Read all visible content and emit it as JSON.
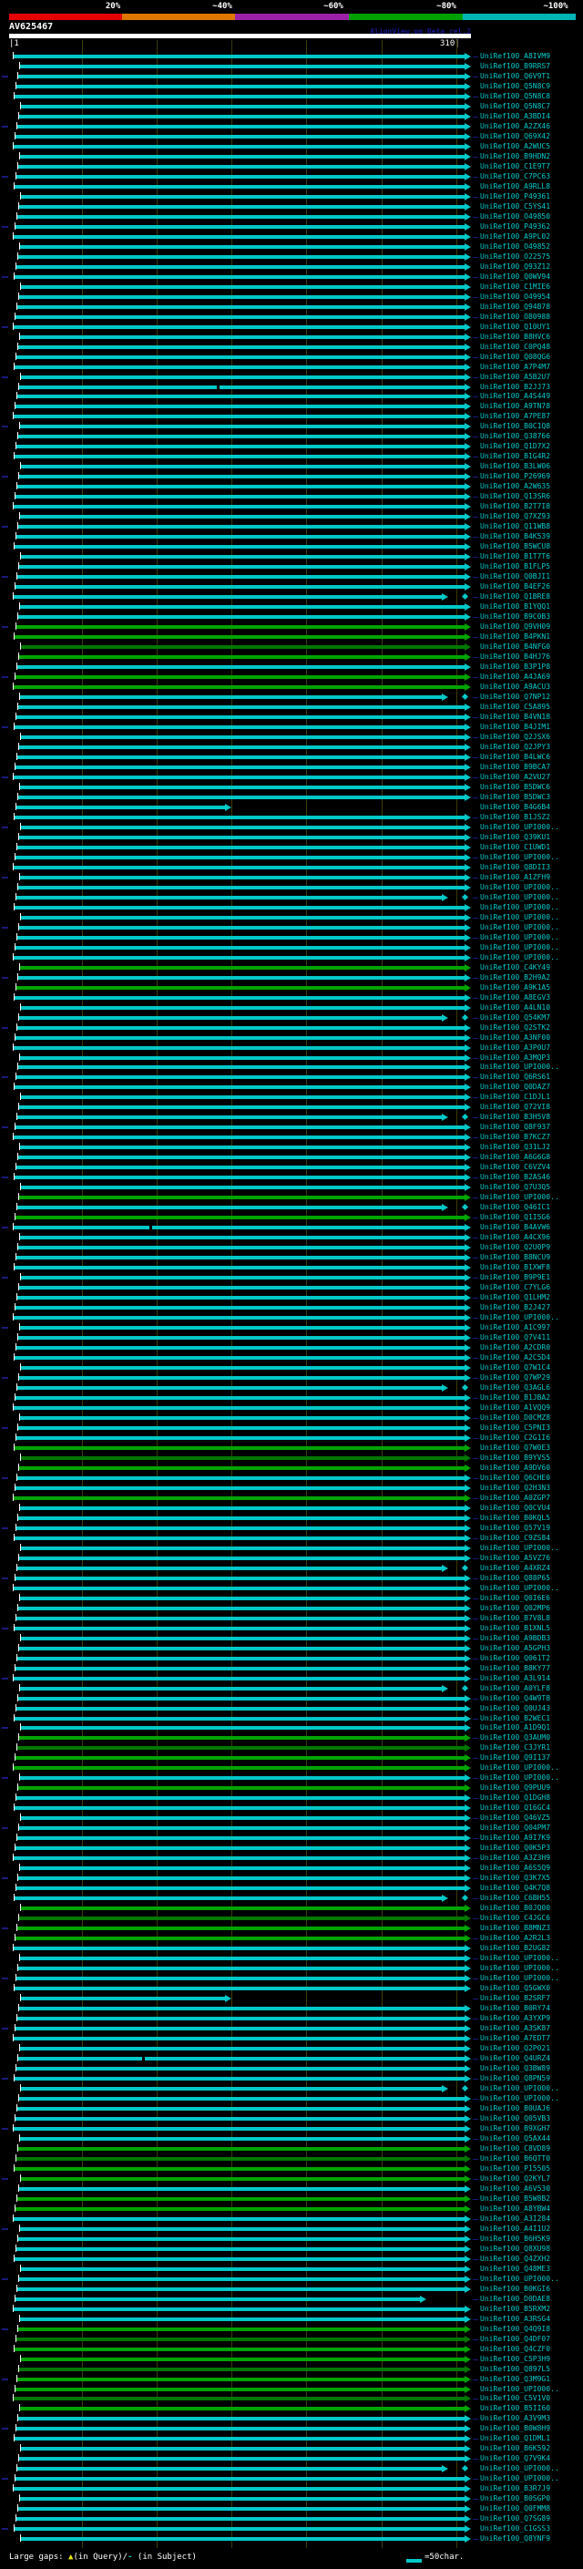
{
  "header": {
    "scale": {
      "labels": [
        "20%",
        "~40%",
        "~60%",
        "~80%",
        "~100%"
      ],
      "colors": [
        "#e60000",
        "#dd7700",
        "#9b22a8",
        "#00a000",
        "#00b4b4"
      ],
      "label_centers": [
        124,
        244,
        366,
        490,
        610
      ],
      "segment_bounds": [
        10,
        134,
        258,
        383,
        508,
        632
      ]
    },
    "query_name": "AV625467",
    "watermark": "AlignView.pm Beta rel.2",
    "ruler": {
      "start": "1",
      "end": "310",
      "tick_interval": 50
    }
  },
  "footer": {
    "gaps_label": "Large gaps: ",
    "gap_query_symbol": "▲",
    "gap_query_text": "(in Query)/",
    "gap_subject_symbol": "-",
    "gap_subject_text": " (in Subject)",
    "bar_scale_text": "=50char.",
    "bar_scale_color": "#00c8c8"
  },
  "chart_data": {
    "type": "bar",
    "orientation": "horizontal",
    "title": "AV625467",
    "xlim": [
      1,
      310
    ],
    "grid": "vertical ticks every 50 chars",
    "identity_scale": [
      "20%",
      "~40%",
      "~60%",
      "~80%",
      "~100%"
    ],
    "bar_colors": {
      "c": "#00c8c8",
      "g": "#00a400",
      "d": "#007800"
    },
    "rows": [
      {
        "l": "UniRef100_A8IVM9"
      },
      {
        "l": "UniRef100_B9RRS7"
      },
      {
        "l": "UniRef100_Q6V9T1"
      },
      {
        "l": "UniRef100_Q5N8C9"
      },
      {
        "l": "UniRef100_Q5N8C8"
      },
      {
        "l": "UniRef100_Q5N8C7"
      },
      {
        "l": "UniRef100_A3BDI4"
      },
      {
        "l": "UniRef100_A2ZX46"
      },
      {
        "l": "UniRef100_Q69X42"
      },
      {
        "l": "UniRef100_A2WUC5"
      },
      {
        "l": "UniRef100_B9HDN2"
      },
      {
        "l": "UniRef100_C1E9T7"
      },
      {
        "l": "UniRef100_C7PC63"
      },
      {
        "l": "UniRef100_A9RLL8"
      },
      {
        "l": "UniRef100_P49361"
      },
      {
        "l": "UniRef100_C5YS41"
      },
      {
        "l": "UniRef100_O49850"
      },
      {
        "l": "UniRef100_P49362"
      },
      {
        "l": "UniRef100_A9PL02"
      },
      {
        "l": "UniRef100_O49852"
      },
      {
        "l": "UniRef100_O22575"
      },
      {
        "l": "UniRef100_Q93Z12"
      },
      {
        "l": "UniRef100_Q0WV94"
      },
      {
        "l": "UniRef100_C1MIE6"
      },
      {
        "l": "UniRef100_O49954"
      },
      {
        "l": "UniRef100_Q94B78"
      },
      {
        "l": "UniRef100_O80988"
      },
      {
        "l": "UniRef100_Q10UY1"
      },
      {
        "l": "UniRef100_B8HVC6"
      },
      {
        "l": "UniRef100_C0PQ48"
      },
      {
        "l": "UniRef100_Q08QG6"
      },
      {
        "l": "UniRef100_A7P4M7"
      },
      {
        "l": "UniRef100_A5B2U7"
      },
      {
        "l": "UniRef100_B2JJ73",
        "gp": 140
      },
      {
        "l": "UniRef100_A4S449"
      },
      {
        "l": "UniRef100_A9TN78"
      },
      {
        "l": "UniRef100_A7PE87"
      },
      {
        "l": "UniRef100_B0C1Q8"
      },
      {
        "l": "UniRef100_Q38766"
      },
      {
        "l": "UniRef100_Q1D7X2"
      },
      {
        "l": "UniRef100_B1G4R2"
      },
      {
        "l": "UniRef100_B3LW06"
      },
      {
        "l": "UniRef100_P26969"
      },
      {
        "l": "UniRef100_A2W635"
      },
      {
        "l": "UniRef100_Q13SR6"
      },
      {
        "l": "UniRef100_B2T7I8"
      },
      {
        "l": "UniRef100_Q7XZ93"
      },
      {
        "l": "UniRef100_Q11WB8"
      },
      {
        "l": "UniRef100_B4K539"
      },
      {
        "l": "UniRef100_B5WCU8"
      },
      {
        "l": "UniRef100_B1T7T6"
      },
      {
        "l": "UniRef100_B1FLP5"
      },
      {
        "l": "UniRef100_Q0BJI1"
      },
      {
        "l": "UniRef100_B4EF26"
      },
      {
        "l": "UniRef100_Q1BRE8",
        "e": 295,
        "dm": 1
      },
      {
        "l": "UniRef100_B1YQQ1"
      },
      {
        "l": "UniRef100_B9C0B3"
      },
      {
        "l": "UniRef100_Q9VH09",
        "c": "g"
      },
      {
        "l": "UniRef100_B4PKN1",
        "c": "g"
      },
      {
        "l": "UniRef100_B4NFG0",
        "c": "d"
      },
      {
        "l": "UniRef100_B4HJ76",
        "c": "g"
      },
      {
        "l": "UniRef100_B3P1P8"
      },
      {
        "l": "UniRef100_A4JA69",
        "c": "g"
      },
      {
        "l": "UniRef100_A9ACU3",
        "c": "g"
      },
      {
        "l": "UniRef100_Q7NP12",
        "e": 295,
        "dm": 1
      },
      {
        "l": "UniRef100_C5A895"
      },
      {
        "l": "UniRef100_B4VN18"
      },
      {
        "l": "UniRef100_B4JIM1"
      },
      {
        "l": "UniRef100_Q2JSX6"
      },
      {
        "l": "UniRef100_Q2JPY3"
      },
      {
        "l": "UniRef100_B4LWC6"
      },
      {
        "l": "UniRef100_B9BCA7"
      },
      {
        "l": "UniRef100_A2VU27"
      },
      {
        "l": "UniRef100_B5DWC6"
      },
      {
        "l": "UniRef100_B5DWC3"
      },
      {
        "l": "UniRef100_B4G6B4",
        "e": 150
      },
      {
        "l": "UniRef100_B1JSZ2"
      },
      {
        "l": "UniRef100_UPI000.."
      },
      {
        "l": "UniRef100_Q39KU1"
      },
      {
        "l": "UniRef100_C1UWD1"
      },
      {
        "l": "UniRef100_UPI000.."
      },
      {
        "l": "UniRef100_Q8DII3"
      },
      {
        "l": "UniRef100_A1ZFH9"
      },
      {
        "l": "UniRef100_UPI000.."
      },
      {
        "l": "UniRef100_UPI000..",
        "e": 295,
        "dm": 1
      },
      {
        "l": "UniRef100_UPI000.."
      },
      {
        "l": "UniRef100_UPI000.."
      },
      {
        "l": "UniRef100_UPI000.."
      },
      {
        "l": "UniRef100_UPI000.."
      },
      {
        "l": "UniRef100_UPI000.."
      },
      {
        "l": "UniRef100_UPI000.."
      },
      {
        "l": "UniRef100_C4KY49",
        "c": "g"
      },
      {
        "l": "UniRef100_B2H9A2"
      },
      {
        "l": "UniRef100_A9K1A5",
        "c": "g"
      },
      {
        "l": "UniRef100_A8EGV3"
      },
      {
        "l": "UniRef100_A4LN10"
      },
      {
        "l": "UniRef100_Q54KM7",
        "e": 295,
        "dm": 1
      },
      {
        "l": "UniRef100_Q2STK2"
      },
      {
        "l": "UniRef100_A3NF00"
      },
      {
        "l": "UniRef100_A3P0U7"
      },
      {
        "l": "UniRef100_A3MQP3"
      },
      {
        "l": "UniRef100_UPI000.."
      },
      {
        "l": "UniRef100_Q6RS61"
      },
      {
        "l": "UniRef100_Q0DAZ7"
      },
      {
        "l": "UniRef100_C1DJL1"
      },
      {
        "l": "UniRef100_Q72VI8"
      },
      {
        "l": "UniRef100_B3H5V8",
        "e": 295,
        "dm": 1
      },
      {
        "l": "UniRef100_Q8F937"
      },
      {
        "l": "UniRef100_B7KCZ7"
      },
      {
        "l": "UniRef100_Q31LJ2"
      },
      {
        "l": "UniRef100_A6G6G8"
      },
      {
        "l": "UniRef100_C6VZV4"
      },
      {
        "l": "UniRef100_B2AS46"
      },
      {
        "l": "UniRef100_Q7U3Q5"
      },
      {
        "l": "UniRef100_UPI000..",
        "c": "g"
      },
      {
        "l": "UniRef100_Q46IC1",
        "e": 295,
        "dm": 1
      },
      {
        "l": "UniRef100_Q1I5G6",
        "c": "g"
      },
      {
        "l": "UniRef100_B4AVW6",
        "gp": 95
      },
      {
        "l": "UniRef100_A4CX96"
      },
      {
        "l": "UniRef100_Q2U0P9"
      },
      {
        "l": "UniRef100_B8NCU9"
      },
      {
        "l": "UniRef100_B1XWF8"
      },
      {
        "l": "UniRef100_B9P9E1"
      },
      {
        "l": "UniRef100_C7YLG6"
      },
      {
        "l": "UniRef100_Q1LHM2"
      },
      {
        "l": "UniRef100_B2J427"
      },
      {
        "l": "UniRef100_UPI000.."
      },
      {
        "l": "UniRef100_A1C997"
      },
      {
        "l": "UniRef100_Q7V411"
      },
      {
        "l": "UniRef100_A2CDR0"
      },
      {
        "l": "UniRef100_A2C5D4"
      },
      {
        "l": "UniRef100_Q7W1C4"
      },
      {
        "l": "UniRef100_Q7WP29"
      },
      {
        "l": "UniRef100_Q3AGL6",
        "e": 295,
        "dm": 1
      },
      {
        "l": "UniRef100_B1JBA2"
      },
      {
        "l": "UniRef100_A1VQQ9"
      },
      {
        "l": "UniRef100_D0CMZ8"
      },
      {
        "l": "UniRef100_C5PNI3"
      },
      {
        "l": "UniRef100_C2G1I6"
      },
      {
        "l": "UniRef100_Q7W0E3",
        "c": "g"
      },
      {
        "l": "UniRef100_B9YVS5",
        "c": "d"
      },
      {
        "l": "UniRef100_A9DV60",
        "c": "g"
      },
      {
        "l": "UniRef100_Q6CHE0"
      },
      {
        "l": "UniRef100_Q2H3N3"
      },
      {
        "l": "UniRef100_A0ZGP7",
        "c": "g"
      },
      {
        "l": "UniRef100_Q0CVU4"
      },
      {
        "l": "UniRef100_B0KQL5"
      },
      {
        "l": "UniRef100_Q57V19"
      },
      {
        "l": "UniRef100_C9ZS84"
      },
      {
        "l": "UniRef100_UPI000.."
      },
      {
        "l": "UniRef100_A5VZ76"
      },
      {
        "l": "UniRef100_A4XRZ4",
        "e": 295,
        "dm": 1
      },
      {
        "l": "UniRef100_Q88P65"
      },
      {
        "l": "UniRef100_UPI000.."
      },
      {
        "l": "UniRef100_Q0I6E6"
      },
      {
        "l": "UniRef100_Q02MP6"
      },
      {
        "l": "UniRef100_B7V8L8"
      },
      {
        "l": "UniRef100_B1XNL5"
      },
      {
        "l": "UniRef100_A9BDB3"
      },
      {
        "l": "UniRef100_A5GPH3"
      },
      {
        "l": "UniRef100_Q061T2"
      },
      {
        "l": "UniRef100_B8KY77"
      },
      {
        "l": "UniRef100_A3L914"
      },
      {
        "l": "UniRef100_A0YLF8",
        "e": 295,
        "dm": 1
      },
      {
        "l": "UniRef100_Q4W9T8"
      },
      {
        "l": "UniRef100_Q0UJ43"
      },
      {
        "l": "UniRef100_B2WEC1"
      },
      {
        "l": "UniRef100_A1D9Q1"
      },
      {
        "l": "UniRef100_Q3AUM0",
        "c": "g"
      },
      {
        "l": "UniRef100_C3JYR1",
        "c": "d"
      },
      {
        "l": "UniRef100_Q9I137",
        "c": "g"
      },
      {
        "l": "UniRef100_UPI000..",
        "c": "g"
      },
      {
        "l": "UniRef100_UPI000.."
      },
      {
        "l": "UniRef100_Q9PUU9",
        "c": "g"
      },
      {
        "l": "UniRef100_Q1DGH8"
      },
      {
        "l": "UniRef100_Q16GC4"
      },
      {
        "l": "UniRef100_Q46VZ5"
      },
      {
        "l": "UniRef100_Q04PM7"
      },
      {
        "l": "UniRef100_A9I7K9"
      },
      {
        "l": "UniRef100_Q0K5P3"
      },
      {
        "l": "UniRef100_A3Z3H9"
      },
      {
        "l": "UniRef100_A6S5Q9"
      },
      {
        "l": "UniRef100_Q3K7X5"
      },
      {
        "l": "UniRef100_Q4K7Q8"
      },
      {
        "l": "UniRef100_C6BH55",
        "e": 295,
        "dm": 1
      },
      {
        "l": "UniRef100_B0JQ00",
        "c": "g"
      },
      {
        "l": "UniRef100_C4JGC6",
        "c": "d"
      },
      {
        "l": "UniRef100_B8MNZ3",
        "c": "g"
      },
      {
        "l": "UniRef100_A2R2L3",
        "c": "g"
      },
      {
        "l": "UniRef100_B2UG82"
      },
      {
        "l": "UniRef100_UPI000.."
      },
      {
        "l": "UniRef100_UPI000.."
      },
      {
        "l": "UniRef100_UPI000.."
      },
      {
        "l": "UniRef100_Q5GWX0"
      },
      {
        "l": "UniRef100_B2SRF7",
        "e": 150
      },
      {
        "l": "UniRef100_B0RY74"
      },
      {
        "l": "UniRef100_A3YXP9"
      },
      {
        "l": "UniRef100_A3SK87"
      },
      {
        "l": "UniRef100_A7EDT7"
      },
      {
        "l": "UniRef100_Q2P021"
      },
      {
        "l": "UniRef100_Q4URZ4",
        "gp": 90
      },
      {
        "l": "UniRef100_Q3BW89"
      },
      {
        "l": "UniRef100_Q8PN59"
      },
      {
        "l": "UniRef100_UPI000..",
        "e": 295,
        "dm": 1
      },
      {
        "l": "UniRef100_UPI000.."
      },
      {
        "l": "UniRef100_B0UAJ6"
      },
      {
        "l": "UniRef100_Q05VB3"
      },
      {
        "l": "UniRef100_B9XGH7"
      },
      {
        "l": "UniRef100_Q5AX44"
      },
      {
        "l": "UniRef100_C8VD89",
        "c": "g"
      },
      {
        "l": "UniRef100_B6QTT0",
        "c": "d"
      },
      {
        "l": "UniRef100_P15505",
        "c": "g"
      },
      {
        "l": "UniRef100_Q2KYL7",
        "c": "g"
      },
      {
        "l": "UniRef100_A6V530"
      },
      {
        "l": "UniRef100_B5W8B2",
        "c": "g"
      },
      {
        "l": "UniRef100_A8YBW4",
        "c": "g"
      },
      {
        "l": "UniRef100_A3I284"
      },
      {
        "l": "UniRef100_A4I1U2"
      },
      {
        "l": "UniRef100_B6H5K9"
      },
      {
        "l": "UniRef100_Q8XU98"
      },
      {
        "l": "UniRef100_Q4ZXH2"
      },
      {
        "l": "UniRef100_Q48ME3"
      },
      {
        "l": "UniRef100_UPI000.."
      },
      {
        "l": "UniRef100_B0KGI6"
      },
      {
        "l": "UniRef100_D0DAE8",
        "e": 280
      },
      {
        "l": "UniRef100_B5RXM2"
      },
      {
        "l": "UniRef100_A3RSG4"
      },
      {
        "l": "UniRef100_Q4Q9I8",
        "c": "g"
      },
      {
        "l": "UniRef100_Q4DF07",
        "c": "d"
      },
      {
        "l": "UniRef100_Q4CZF0",
        "c": "g"
      },
      {
        "l": "UniRef100_C5P3H9",
        "c": "g"
      },
      {
        "l": "UniRef100_Q897L5",
        "c": "d"
      },
      {
        "l": "UniRef100_Q3M9G1",
        "c": "g"
      },
      {
        "l": "UniRef100_UPI000..",
        "c": "g"
      },
      {
        "l": "UniRef100_C5V1V0",
        "c": "d"
      },
      {
        "l": "UniRef100_B5II60",
        "c": "g"
      },
      {
        "l": "UniRef100_A3V9M3"
      },
      {
        "l": "UniRef100_B0W8H9"
      },
      {
        "l": "UniRef100_Q1DML1"
      },
      {
        "l": "UniRef100_B6K592"
      },
      {
        "l": "UniRef100_Q7V9K4"
      },
      {
        "l": "UniRef100_UPI000..",
        "e": 295,
        "dm": 1
      },
      {
        "l": "UniRef100_UPI000.."
      },
      {
        "l": "UniRef100_B3R7J9"
      },
      {
        "l": "UniRef100_B0SGP0"
      },
      {
        "l": "UniRef100_Q0FMM8"
      },
      {
        "l": "UniRef100_Q7SG89"
      },
      {
        "l": "UniRef100_C1GSS3"
      },
      {
        "l": "UniRef100_Q8YNF9"
      }
    ]
  }
}
